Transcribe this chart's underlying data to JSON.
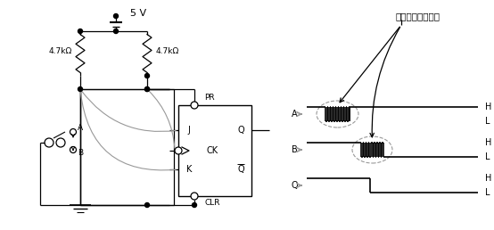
{
  "bg_color": "#ffffff",
  "line_color": "#000000",
  "gray_color": "#999999",
  "voltage_label": "5 V",
  "resistor_label1": "4.7kΩ",
  "resistor_label2": "4.7kΩ",
  "japanese_label": "チャタリング現象",
  "sig_A": "A",
  "sig_B": "B",
  "sig_Q": "Q",
  "label_H": "H",
  "label_L": "L",
  "label_PR": "PR",
  "label_CLR": "CLR",
  "label_J": "J",
  "label_K": "K",
  "label_Q": "Q",
  "label_Qbar": "Q",
  "label_CK": "CK"
}
